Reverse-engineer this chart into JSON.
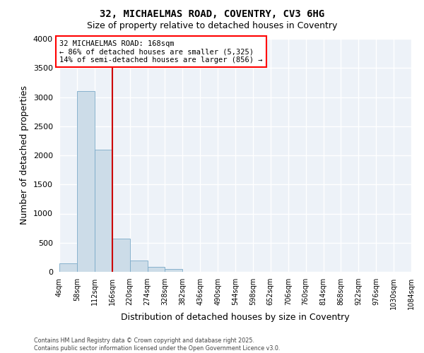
{
  "title1": "32, MICHAELMAS ROAD, COVENTRY, CV3 6HG",
  "title2": "Size of property relative to detached houses in Coventry",
  "xlabel": "Distribution of detached houses by size in Coventry",
  "ylabel": "Number of detached properties",
  "annotation_line1": "32 MICHAELMAS ROAD: 168sqm",
  "annotation_line2": "← 86% of detached houses are smaller (5,325)",
  "annotation_line3": "14% of semi-detached houses are larger (856) →",
  "bin_edges": [
    4,
    58,
    112,
    166,
    220,
    274,
    328,
    382,
    436,
    490,
    544,
    598,
    652,
    706,
    760,
    814,
    868,
    922,
    976,
    1030,
    1084
  ],
  "bar_heights": [
    150,
    3100,
    2100,
    575,
    200,
    80,
    50,
    0,
    0,
    0,
    0,
    0,
    0,
    0,
    0,
    0,
    0,
    0,
    0,
    0
  ],
  "bar_color": "#ccdce8",
  "bar_edge_color": "#7aaac8",
  "vline_color": "#cc0000",
  "vline_x": 166,
  "ylim": [
    0,
    4000
  ],
  "yticks": [
    0,
    500,
    1000,
    1500,
    2000,
    2500,
    3000,
    3500,
    4000
  ],
  "plot_bg": "#edf2f8",
  "grid_color": "#ffffff",
  "footer_line1": "Contains HM Land Registry data © Crown copyright and database right 2025.",
  "footer_line2": "Contains public sector information licensed under the Open Government Licence v3.0."
}
